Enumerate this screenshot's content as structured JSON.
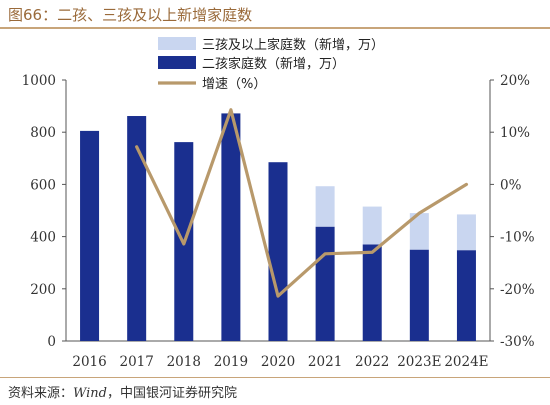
{
  "title": "图66：二孩、三孩及以上新增家庭数",
  "source_prefix": "资料来源：",
  "source_wind": "Wind",
  "source_suffix": "，中国银河证券研究院",
  "colors": {
    "bar_second": "#1a2f8f",
    "bar_third": "#c9d6f0",
    "line": "#b8996b",
    "rule": "#c8a57a",
    "title": "#9a6a3a"
  },
  "chart_data": {
    "type": "bar",
    "categories": [
      "2016",
      "2017",
      "2018",
      "2019",
      "2020",
      "2021",
      "2022",
      "2023E",
      "2024E"
    ],
    "series": [
      {
        "name": "二孩家庭数（新增，万）",
        "type": "bar",
        "axis": "left",
        "stack": "total",
        "values": [
          805,
          862,
          762,
          872,
          685,
          438,
          370,
          350,
          348
        ]
      },
      {
        "name": "三孩及以上家庭数（新增，万）",
        "type": "bar",
        "axis": "left",
        "stack": "total",
        "values": [
          0,
          0,
          0,
          0,
          0,
          155,
          145,
          140,
          137
        ]
      },
      {
        "name": "增速（%）",
        "type": "line",
        "axis": "right",
        "values": [
          null,
          7.2,
          -11.4,
          14.3,
          -21.4,
          -13.3,
          -13.0,
          -5.5,
          0
        ]
      }
    ],
    "legend_order": [
      "三孩及以上家庭数（新增，万）",
      "二孩家庭数（新增，万）",
      "增速（%）"
    ],
    "y_left": {
      "min": 0,
      "max": 1000,
      "ticks": [
        "0",
        "200",
        "400",
        "600",
        "800",
        "1000"
      ]
    },
    "y_right": {
      "min": -30,
      "max": 20,
      "ticks": [
        "-30%",
        "-20%",
        "-10%",
        "0%",
        "10%",
        "20%"
      ]
    },
    "grid": false,
    "legend_position": "top-center"
  }
}
